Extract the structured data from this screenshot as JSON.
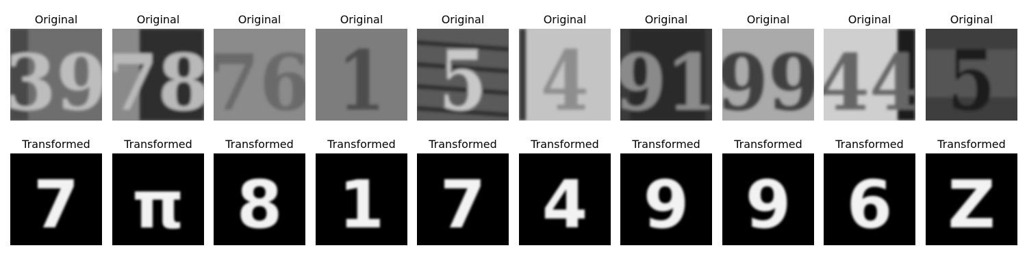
{
  "rows": [
    {
      "label": "Original",
      "tiles": [
        {
          "glyph": "39",
          "bg": "#6e6e6e",
          "fg": "#bdbdbd",
          "dark_panel": "#4a4a4a"
        },
        {
          "glyph": "78",
          "bg": "#8a8a8a",
          "fg": "#b9b9b9",
          "dark_panel": "#2f2f2f"
        },
        {
          "glyph": "76",
          "bg": "#8b8b8b",
          "fg": "#6a6a6a",
          "dark_panel": "#7c7c7c"
        },
        {
          "glyph": "1",
          "bg": "#7d7d7d",
          "fg": "#4e4e4e",
          "dark_panel": "#7a7a7a"
        },
        {
          "glyph": "5",
          "bg": "#5a5a5a",
          "fg": "#c8c8c8",
          "dark_panel": "#3c3c3c"
        },
        {
          "glyph": "4",
          "bg": "#c4c4c4",
          "fg": "#8e8e8e",
          "dark_panel": "#3a3a3a"
        },
        {
          "glyph": "91",
          "bg": "#3b3b3b",
          "fg": "#8a8a8a",
          "dark_panel": "#2a2a2a"
        },
        {
          "glyph": "99",
          "bg": "#aaaaaa",
          "fg": "#3f3f3f",
          "dark_panel": "#a2a2a2"
        },
        {
          "glyph": "44",
          "bg": "#cfcfcf",
          "fg": "#666666",
          "dark_panel": "#1e1e1e"
        },
        {
          "glyph": "5",
          "bg": "#3e3e3e",
          "fg": "#1e1e1e",
          "dark_panel": "#555555"
        }
      ]
    },
    {
      "label": "Transformed",
      "tiles": [
        {
          "glyph": "7",
          "bg": "#000000",
          "fg": "#f2f2f2"
        },
        {
          "glyph": "π",
          "bg": "#000000",
          "fg": "#f2f2f2"
        },
        {
          "glyph": "8",
          "bg": "#000000",
          "fg": "#f2f2f2"
        },
        {
          "glyph": "1",
          "bg": "#000000",
          "fg": "#f2f2f2"
        },
        {
          "glyph": "7",
          "bg": "#000000",
          "fg": "#f2f2f2"
        },
        {
          "glyph": "4",
          "bg": "#000000",
          "fg": "#f2f2f2"
        },
        {
          "glyph": "9",
          "bg": "#000000",
          "fg": "#f2f2f2"
        },
        {
          "glyph": "9",
          "bg": "#000000",
          "fg": "#f2f2f2"
        },
        {
          "glyph": "6",
          "bg": "#000000",
          "fg": "#f2f2f2"
        },
        {
          "glyph": "Z",
          "bg": "#000000",
          "fg": "#f2f2f2"
        }
      ]
    }
  ]
}
